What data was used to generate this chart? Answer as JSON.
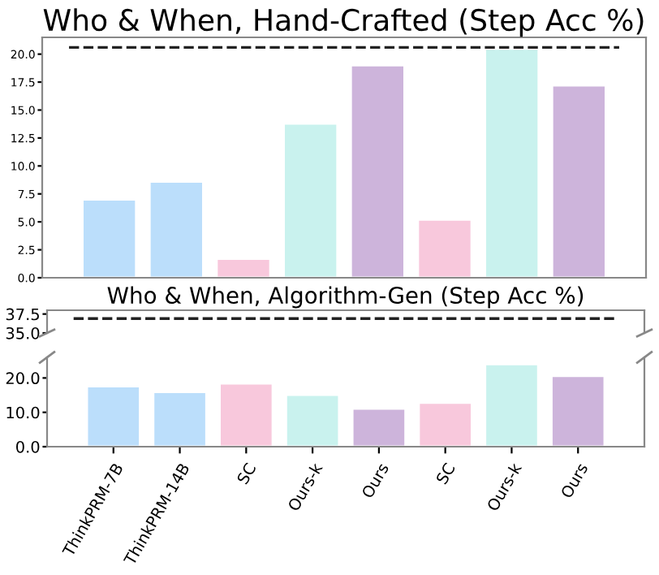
{
  "chart_data": [
    {
      "type": "bar",
      "title": "Who & When, Hand-Crafted (Step Acc %)",
      "categories": [
        null,
        null,
        null,
        null,
        null,
        null,
        null,
        null
      ],
      "values": [
        7.0,
        8.6,
        1.7,
        13.8,
        19.0,
        5.2,
        20.5,
        17.2
      ],
      "colors": [
        "#bbdefb",
        "#bbdefb",
        "#f8c8dc",
        "#c9f2ee",
        "#cdb4db",
        "#f8c8dc",
        "#c9f2ee",
        "#cdb4db"
      ],
      "ylim": [
        0,
        21.5
      ],
      "yticks": [
        {
          "value": 0,
          "label": "0.0"
        },
        {
          "value": 2.5,
          "label": "2.5"
        },
        {
          "value": 5,
          "label": "5.0"
        },
        {
          "value": 7.5,
          "label": "7.5"
        },
        {
          "value": 10,
          "label": "10.0"
        },
        {
          "value": 12.5,
          "label": "12.5"
        },
        {
          "value": 15,
          "label": "15.0"
        },
        {
          "value": 17.5,
          "label": "17.5"
        },
        {
          "value": 20,
          "label": "20.0"
        }
      ],
      "ref_lines": [
        {
          "axis": "y",
          "value": 20.6,
          "color": "#222222",
          "line_style": "dashed"
        }
      ],
      "tick_labels": "y",
      "grid": false
    },
    {
      "type": "bar",
      "title": "Who & When, Algorithm-Gen (Step Acc %)",
      "categories": [
        null,
        null,
        null,
        null,
        null,
        null,
        null,
        null
      ],
      "values": [
        null,
        null,
        null,
        null,
        null,
        null,
        null,
        null
      ],
      "ylim": [
        35,
        38
      ],
      "yticks": [
        {
          "value": 35,
          "label": "35.0"
        },
        {
          "value": 37.5,
          "label": "37.5"
        }
      ],
      "ref_lines": [
        {
          "axis": "y",
          "value": 36.9,
          "color": "#222222",
          "line_style": "dashed"
        }
      ],
      "tick_labels": "y",
      "grid": false
    },
    {
      "type": "bar",
      "categories": [
        "ThinkPRM-7B",
        "ThinkPRM-14B",
        "SC",
        "Ours-k",
        "Ours",
        "SC",
        "Ours-k",
        "Ours"
      ],
      "values": [
        17.6,
        15.9,
        18.4,
        15.1,
        11.1,
        12.8,
        24.0,
        20.6
      ],
      "colors": [
        "#bbdefb",
        "#bbdefb",
        "#f8c8dc",
        "#c9f2ee",
        "#cdb4db",
        "#f8c8dc",
        "#c9f2ee",
        "#cdb4db"
      ],
      "ylim": [
        0,
        26
      ],
      "yticks": [
        {
          "value": 0,
          "label": "0.0"
        },
        {
          "value": 10,
          "label": "10.0"
        },
        {
          "value": 20,
          "label": "20.0"
        }
      ],
      "grid": false
    }
  ]
}
